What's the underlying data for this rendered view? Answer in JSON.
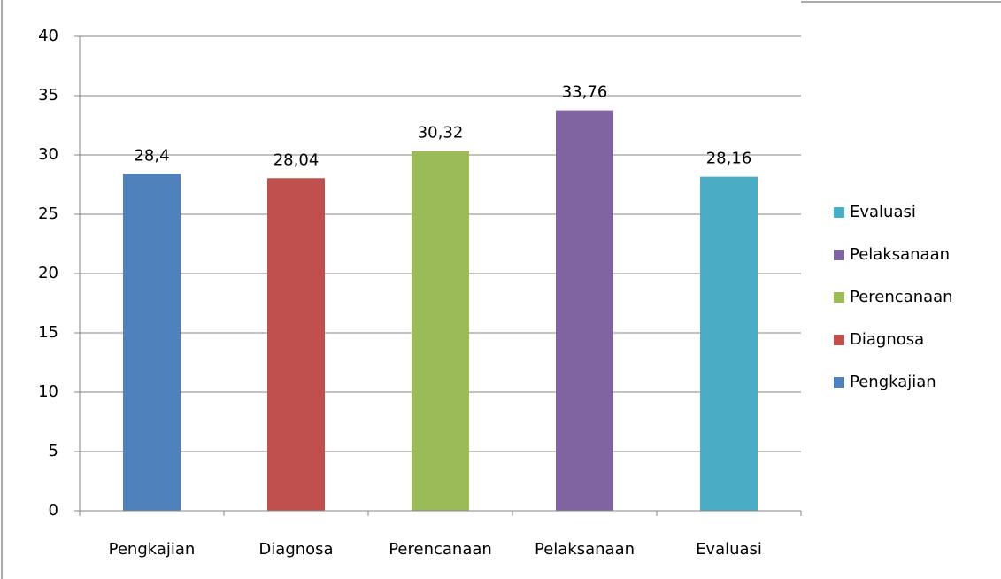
{
  "chart_data": {
    "type": "bar",
    "categories": [
      "Pengkajian",
      "Diagnosa",
      "Perencanaan",
      "Pelaksanaan",
      "Evaluasi"
    ],
    "series": [
      {
        "name": "Pengkajian",
        "color": "#4f81bd",
        "values": [
          28.4,
          null,
          null,
          null,
          null
        ],
        "value_labels": [
          "28,4",
          null,
          null,
          null,
          null
        ]
      },
      {
        "name": "Diagnosa",
        "color": "#c0504d",
        "values": [
          null,
          28.04,
          null,
          null,
          null
        ],
        "value_labels": [
          null,
          "28,04",
          null,
          null,
          null
        ]
      },
      {
        "name": "Perencanaan",
        "color": "#9bbb59",
        "values": [
          null,
          null,
          30.32,
          null,
          null
        ],
        "value_labels": [
          null,
          null,
          "30,32",
          null,
          null
        ]
      },
      {
        "name": "Pelaksanaan",
        "color": "#8064a2",
        "values": [
          null,
          null,
          null,
          33.76,
          null
        ],
        "value_labels": [
          null,
          null,
          null,
          "33,76",
          null
        ]
      },
      {
        "name": "Evaluasi",
        "color": "#4bacc6",
        "values": [
          null,
          null,
          null,
          null,
          28.16
        ],
        "value_labels": [
          null,
          null,
          null,
          null,
          "28,16"
        ]
      }
    ],
    "ylim": [
      0,
      40
    ],
    "yticks": [
      0,
      5,
      10,
      15,
      20,
      25,
      30,
      35,
      40
    ],
    "grid": true,
    "legend": "right"
  }
}
